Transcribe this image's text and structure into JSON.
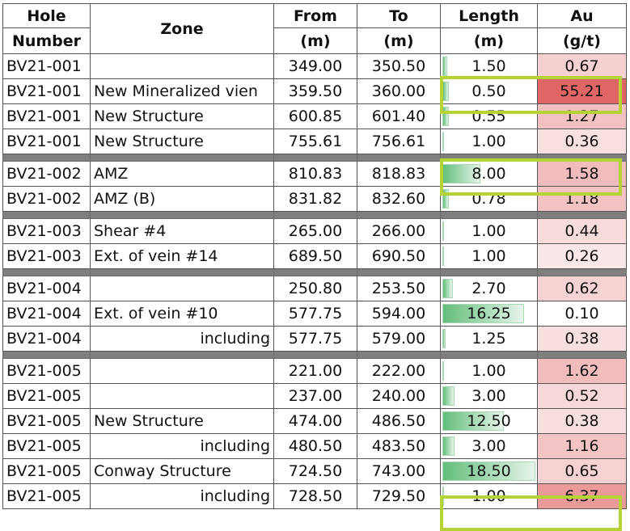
{
  "headers": {
    "hole_line1": "Hole",
    "hole_line2": "Number",
    "zone": "Zone",
    "from_line1": "From",
    "from_line2": "(m)",
    "to_line1": "To",
    "to_line2": "(m)",
    "length_line1": "Length",
    "length_line2": "(m)",
    "au_line1": "Au",
    "au_line2": "(g/t)"
  },
  "colors": {
    "bar_green": "#63be7b",
    "au_max_red": "#e06666",
    "separator_gray": "#7f7f7f",
    "highlight_outline": "#b5d334"
  },
  "groups": [
    {
      "rows": [
        {
          "hole": "BV21-001",
          "zone": "",
          "zone_align": "left",
          "from": "349.00",
          "to": "350.50",
          "length": "1.50",
          "au": "0.67"
        },
        {
          "hole": "BV21-001",
          "zone": "New Mineralized vien",
          "zone_align": "left",
          "from": "359.50",
          "to": "360.00",
          "length": "0.50",
          "au": "55.21"
        },
        {
          "hole": "BV21-001",
          "zone": "New Structure",
          "zone_align": "left",
          "from": "600.85",
          "to": "601.40",
          "length": "0.55",
          "au": "1.27"
        },
        {
          "hole": "BV21-001",
          "zone": "New Structure",
          "zone_align": "left",
          "from": "755.61",
          "to": "756.61",
          "length": "1.00",
          "au": "0.36"
        }
      ]
    },
    {
      "rows": [
        {
          "hole": "BV21-002",
          "zone": "AMZ",
          "zone_align": "left",
          "from": "810.83",
          "to": "818.83",
          "length": "8.00",
          "au": "1.58"
        },
        {
          "hole": "BV21-002",
          "zone": "AMZ (B)",
          "zone_align": "left",
          "from": "831.82",
          "to": "832.60",
          "length": "0.78",
          "au": "1.18"
        }
      ]
    },
    {
      "rows": [
        {
          "hole": "BV21-003",
          "zone": "Shear #4",
          "zone_align": "left",
          "from": "265.00",
          "to": "266.00",
          "length": "1.00",
          "au": "0.44"
        },
        {
          "hole": "BV21-003",
          "zone": "Ext. of vein #14",
          "zone_align": "left",
          "from": "689.50",
          "to": "690.50",
          "length": "1.00",
          "au": "0.26"
        }
      ]
    },
    {
      "rows": [
        {
          "hole": "BV21-004",
          "zone": "",
          "zone_align": "left",
          "from": "250.80",
          "to": "253.50",
          "length": "2.70",
          "au": "0.62"
        },
        {
          "hole": "BV21-004",
          "zone": "Ext. of vein #10",
          "zone_align": "left",
          "from": "577.75",
          "to": "594.00",
          "length": "16.25",
          "au": "0.10"
        },
        {
          "hole": "BV21-004",
          "zone": "including",
          "zone_align": "right",
          "from": "577.75",
          "to": "579.00",
          "length": "1.25",
          "au": "0.38"
        }
      ]
    },
    {
      "rows": [
        {
          "hole": "BV21-005",
          "zone": "",
          "zone_align": "left",
          "from": "221.00",
          "to": "222.00",
          "length": "1.00",
          "au": "1.62"
        },
        {
          "hole": "BV21-005",
          "zone": "",
          "zone_align": "left",
          "from": "237.00",
          "to": "240.00",
          "length": "3.00",
          "au": "0.52"
        },
        {
          "hole": "BV21-005",
          "zone": "New Structure",
          "zone_align": "left",
          "from": "474.00",
          "to": "486.50",
          "length": "12.50",
          "au": "0.38"
        },
        {
          "hole": "BV21-005",
          "zone": "including",
          "zone_align": "right",
          "from": "480.50",
          "to": "483.50",
          "length": "3.00",
          "au": "1.16"
        },
        {
          "hole": "BV21-005",
          "zone": "Conway Structure",
          "zone_align": "left",
          "from": "724.50",
          "to": "743.00",
          "length": "18.50",
          "au": "0.65"
        },
        {
          "hole": "BV21-005",
          "zone": "including",
          "zone_align": "right",
          "from": "728.50",
          "to": "729.50",
          "length": "1.00",
          "au": "6.37"
        }
      ]
    }
  ]
}
